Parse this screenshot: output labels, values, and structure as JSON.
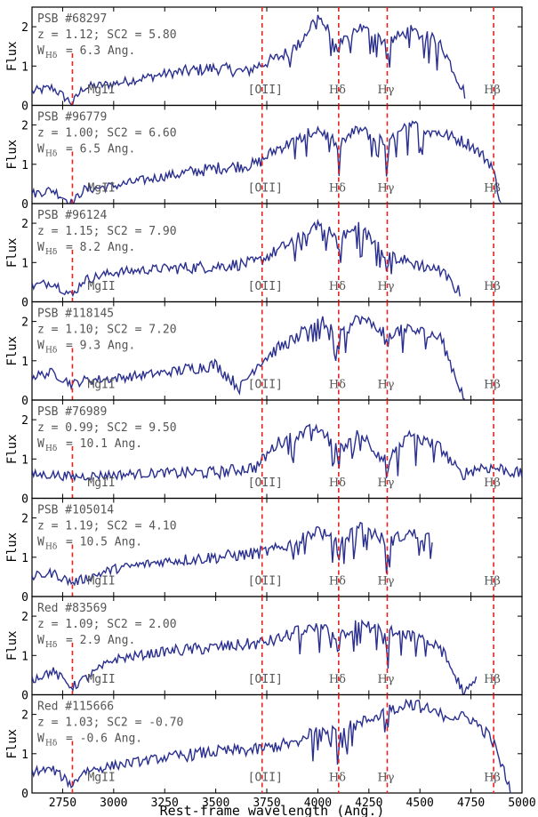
{
  "chart_data": {
    "type": "line",
    "xlabel": "Rest-frame wavelength (Ang.)",
    "ylabel": "Flux",
    "xlim": [
      2600,
      5000
    ],
    "ylim": [
      0,
      2.5
    ],
    "xticks": [
      2750,
      3000,
      3250,
      3500,
      3750,
      4000,
      4250,
      4500,
      4750,
      5000
    ],
    "yticks": [
      0,
      1,
      2
    ],
    "line_color": "#2a2f8f",
    "marker_color": "#e8211d",
    "spectral_lines": [
      {
        "label": "MgII",
        "wavelength": 2798
      },
      {
        "label": "[OII]",
        "wavelength": 3727
      },
      {
        "label": "Hδ",
        "wavelength": 4102
      },
      {
        "label": "Hγ",
        "wavelength": 4340
      },
      {
        "label": "Hβ",
        "wavelength": 4861
      }
    ],
    "panels": [
      {
        "id": "PSB #68297",
        "info": "z = 1.12; SC2 = 5.80",
        "w_value": "= 6.3 Ang.",
        "xmax": 4720,
        "anchors": [
          [
            2600,
            0.35
          ],
          [
            2700,
            0.45
          ],
          [
            2798,
            0.05
          ],
          [
            2850,
            0.45
          ],
          [
            3000,
            0.55
          ],
          [
            3250,
            0.8
          ],
          [
            3500,
            0.95
          ],
          [
            3650,
            0.85
          ],
          [
            3700,
            1.0
          ],
          [
            3800,
            1.2
          ],
          [
            3900,
            1.5
          ],
          [
            4000,
            2.3
          ],
          [
            4102,
            1.5
          ],
          [
            4200,
            2.0
          ],
          [
            4340,
            1.6
          ],
          [
            4450,
            1.9
          ],
          [
            4600,
            1.6
          ],
          [
            4720,
            0.3
          ]
        ]
      },
      {
        "id": "PSB #96779",
        "info": "z = 1.00; SC2 = 6.60",
        "w_value": "= 6.5 Ang.",
        "xmax": 4900,
        "anchors": [
          [
            2600,
            0.25
          ],
          [
            2700,
            0.35
          ],
          [
            2798,
            0.0
          ],
          [
            2850,
            0.35
          ],
          [
            3000,
            0.45
          ],
          [
            3250,
            0.7
          ],
          [
            3500,
            0.9
          ],
          [
            3700,
            1.0
          ],
          [
            3800,
            1.4
          ],
          [
            3900,
            1.6
          ],
          [
            4000,
            1.9
          ],
          [
            4102,
            1.5
          ],
          [
            4200,
            1.9
          ],
          [
            4340,
            1.5
          ],
          [
            4450,
            2.0
          ],
          [
            4600,
            1.8
          ],
          [
            4750,
            1.5
          ],
          [
            4850,
            1.0
          ],
          [
            4900,
            0.0
          ]
        ]
      },
      {
        "id": "PSB #96124",
        "info": "z = 1.15; SC2 = 7.90",
        "w_value": "= 8.2 Ang.",
        "xmax": 4700,
        "anchors": [
          [
            2600,
            0.4
          ],
          [
            2700,
            0.5
          ],
          [
            2798,
            0.15
          ],
          [
            2850,
            0.55
          ],
          [
            3000,
            0.75
          ],
          [
            3250,
            0.85
          ],
          [
            3500,
            0.9
          ],
          [
            3700,
            1.0
          ],
          [
            3800,
            1.3
          ],
          [
            3900,
            1.6
          ],
          [
            4000,
            2.0
          ],
          [
            4102,
            1.6
          ],
          [
            4200,
            1.9
          ],
          [
            4340,
            1.2
          ],
          [
            4450,
            1.0
          ],
          [
            4600,
            0.8
          ],
          [
            4700,
            0.2
          ]
        ]
      },
      {
        "id": "PSB #118145",
        "info": "z = 1.10; SC2 = 7.20",
        "w_value": "= 9.3 Ang.",
        "xmax": 4720,
        "anchors": [
          [
            2600,
            0.6
          ],
          [
            2700,
            0.7
          ],
          [
            2798,
            0.4
          ],
          [
            2850,
            0.5
          ],
          [
            3000,
            0.55
          ],
          [
            3250,
            0.7
          ],
          [
            3500,
            0.9
          ],
          [
            3620,
            0.3
          ],
          [
            3700,
            0.9
          ],
          [
            3800,
            1.3
          ],
          [
            3900,
            1.6
          ],
          [
            4000,
            2.1
          ],
          [
            4102,
            1.6
          ],
          [
            4200,
            2.1
          ],
          [
            4340,
            1.7
          ],
          [
            4450,
            1.8
          ],
          [
            4600,
            1.6
          ],
          [
            4720,
            0.0
          ]
        ]
      },
      {
        "id": "PSB #76989",
        "info": "z = 0.99; SC2 = 9.50",
        "w_value": "= 10.1 Ang.",
        "xmax": 5000,
        "anchors": [
          [
            2600,
            0.6
          ],
          [
            2700,
            0.6
          ],
          [
            2798,
            0.55
          ],
          [
            3000,
            0.6
          ],
          [
            3250,
            0.65
          ],
          [
            3500,
            0.65
          ],
          [
            3700,
            0.8
          ],
          [
            3800,
            1.4
          ],
          [
            3900,
            1.6
          ],
          [
            4000,
            1.8
          ],
          [
            4102,
            1.2
          ],
          [
            4200,
            1.7
          ],
          [
            4340,
            0.9
          ],
          [
            4450,
            1.6
          ],
          [
            4600,
            1.3
          ],
          [
            4700,
            0.6
          ],
          [
            4800,
            0.8
          ],
          [
            4900,
            0.75
          ],
          [
            5000,
            0.6
          ]
        ]
      },
      {
        "id": "PSB #105014",
        "info": "z = 1.19; SC2 = 4.10",
        "w_value": "= 10.5 Ang.",
        "xmax": 4560,
        "anchors": [
          [
            2600,
            0.5
          ],
          [
            2700,
            0.6
          ],
          [
            2798,
            0.35
          ],
          [
            3000,
            0.7
          ],
          [
            3250,
            0.9
          ],
          [
            3500,
            1.0
          ],
          [
            3700,
            1.1
          ],
          [
            3800,
            1.2
          ],
          [
            3900,
            1.4
          ],
          [
            4000,
            1.7
          ],
          [
            4102,
            1.3
          ],
          [
            4200,
            1.8
          ],
          [
            4340,
            1.4
          ],
          [
            4450,
            1.6
          ],
          [
            4560,
            1.5
          ]
        ]
      },
      {
        "id": "Red #83569",
        "info": "z = 1.09; SC2 = 2.00",
        "w_value": "= 2.9 Ang.",
        "xmax": 4780,
        "anchors": [
          [
            2600,
            0.4
          ],
          [
            2700,
            0.6
          ],
          [
            2798,
            0.2
          ],
          [
            3000,
            0.9
          ],
          [
            3250,
            1.1
          ],
          [
            3500,
            1.2
          ],
          [
            3700,
            1.3
          ],
          [
            3800,
            1.4
          ],
          [
            3900,
            1.6
          ],
          [
            4000,
            1.7
          ],
          [
            4102,
            1.5
          ],
          [
            4200,
            1.8
          ],
          [
            4340,
            1.6
          ],
          [
            4450,
            1.5
          ],
          [
            4600,
            1.2
          ],
          [
            4720,
            0.0
          ],
          [
            4780,
            0.4
          ]
        ]
      },
      {
        "id": "Red #115666",
        "info": "z = 1.03; SC2 = -0.70",
        "w_value": "= -0.6 Ang.",
        "xmax": 4950,
        "anchors": [
          [
            2600,
            0.55
          ],
          [
            2700,
            0.6
          ],
          [
            2798,
            0.2
          ],
          [
            2850,
            0.55
          ],
          [
            3000,
            0.7
          ],
          [
            3250,
            0.9
          ],
          [
            3500,
            1.05
          ],
          [
            3700,
            1.1
          ],
          [
            3800,
            1.2
          ],
          [
            3900,
            1.3
          ],
          [
            4000,
            1.7
          ],
          [
            4102,
            1.6
          ],
          [
            4200,
            1.75
          ],
          [
            4340,
            2.1
          ],
          [
            4450,
            2.3
          ],
          [
            4600,
            2.0
          ],
          [
            4750,
            1.9
          ],
          [
            4850,
            1.4
          ],
          [
            4950,
            0.0
          ]
        ]
      }
    ]
  }
}
